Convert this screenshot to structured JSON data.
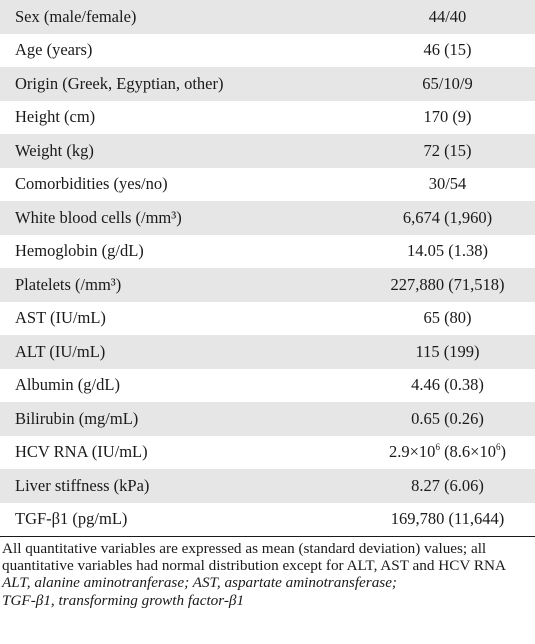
{
  "table": {
    "rows": [
      {
        "label": "Sex (male/female)",
        "value": "44/40"
      },
      {
        "label": "Age (years)",
        "value": "46 (15)"
      },
      {
        "label": "Origin (Greek, Egyptian, other)",
        "value": "65/10/9"
      },
      {
        "label": "Height (cm)",
        "value": "170 (9)"
      },
      {
        "label": "Weight (kg)",
        "value": "72 (15)"
      },
      {
        "label": "Comorbidities (yes/no)",
        "value": "30/54"
      },
      {
        "label": "White blood cells (/mm³)",
        "value": "6,674 (1,960)"
      },
      {
        "label": "Hemoglobin (g/dL)",
        "value": "14.05 (1.38)"
      },
      {
        "label": "Platelets (/mm³)",
        "value": "227,880 (71,518)"
      },
      {
        "label": "AST (IU/mL)",
        "value": "65 (80)"
      },
      {
        "label": "ALT (IU/mL)",
        "value": "115 (199)"
      },
      {
        "label": "Albumin (g/dL)",
        "value": "4.46 (0.38)"
      },
      {
        "label": "Bilirubin (mg/mL)",
        "value": "0.65 (0.26)"
      },
      {
        "label": "HCV RNA (IU/mL)",
        "value_base": "2.9×10",
        "value_exp": "6",
        "value_mid": " (8.6×10",
        "value_exp2": "6",
        "value_end": ")"
      },
      {
        "label": "Liver stiffness (kPa)",
        "value": "8.27 (6.06)"
      },
      {
        "label": "TGF-β1 (pg/mL)",
        "value": "169,780 (11,644)"
      }
    ]
  },
  "notes": {
    "line1": "All quantitative variables are expressed as mean (standard deviation) values; all quantitative variables had normal distribution except for ALT, AST and HCV RNA",
    "abbreviations_1": "ALT, alanine aminotranferase; AST, aspartate aminotransferase;",
    "abbreviations_2": "TGF-β1, transforming growth factor-β1"
  },
  "colors": {
    "shaded_row": "#e6e6e6",
    "text": "#1a1a1a"
  }
}
